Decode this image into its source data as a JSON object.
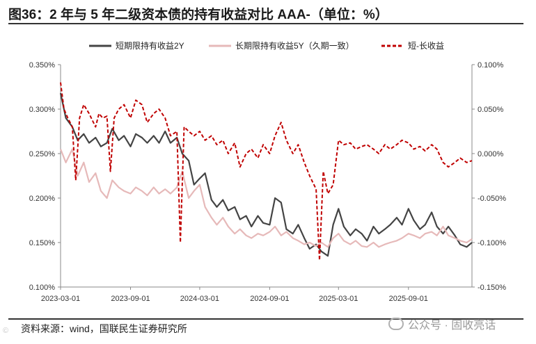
{
  "title": "图36：2 年与 5 年二级资本债的持有收益对比 AAA-（单位：%）",
  "source": "资料来源：wind，国联民生证券研究所",
  "watermark": "公众号 · 固收亮话",
  "corner_mark": "©",
  "colors": {
    "short": "#444444",
    "long": "#e6b9b9",
    "spread": "#c00000"
  },
  "chart_data": {
    "type": "line",
    "legend": [
      "短期限持有收益2Y",
      "长期限持有收益5Y（久期一致）",
      "短-长收益"
    ],
    "x_start": "2023-03-01",
    "x_end": "2026-02-15",
    "x_tick_labels": [
      "2023-03-01",
      "2023-09-01",
      "2024-03-01",
      "2024-09-01",
      "2025-03-01",
      "2025-09-01"
    ],
    "left_axis": {
      "min": 0.1,
      "max": 0.35,
      "tick_labels": [
        "0.100%",
        "0.150%",
        "0.200%",
        "0.250%",
        "0.300%",
        "0.350%"
      ]
    },
    "right_axis": {
      "min": -0.15,
      "max": 0.1,
      "tick_labels": [
        "-0.150%",
        "-0.100%",
        "-0.050%",
        "0.000%",
        "0.050%",
        "0.100%"
      ]
    },
    "series": [
      {
        "name": "短期限持有收益2Y",
        "axis": "left",
        "points": [
          [
            "2023-03-01",
            0.318
          ],
          [
            "2023-03-15",
            0.29
          ],
          [
            "2023-04-01",
            0.28
          ],
          [
            "2023-04-15",
            0.265
          ],
          [
            "2023-05-01",
            0.272
          ],
          [
            "2023-05-15",
            0.262
          ],
          [
            "2023-06-01",
            0.268
          ],
          [
            "2023-06-15",
            0.258
          ],
          [
            "2023-07-01",
            0.262
          ],
          [
            "2023-07-15",
            0.278
          ],
          [
            "2023-08-01",
            0.265
          ],
          [
            "2023-08-15",
            0.27
          ],
          [
            "2023-09-01",
            0.258
          ],
          [
            "2023-09-15",
            0.272
          ],
          [
            "2023-10-01",
            0.268
          ],
          [
            "2023-10-15",
            0.262
          ],
          [
            "2023-11-01",
            0.27
          ],
          [
            "2023-11-15",
            0.262
          ],
          [
            "2023-12-01",
            0.275
          ],
          [
            "2023-12-15",
            0.262
          ],
          [
            "2024-01-01",
            0.268
          ],
          [
            "2024-01-15",
            0.25
          ],
          [
            "2024-02-01",
            0.242
          ],
          [
            "2024-02-15",
            0.215
          ],
          [
            "2024-03-01",
            0.222
          ],
          [
            "2024-03-15",
            0.228
          ],
          [
            "2024-04-01",
            0.198
          ],
          [
            "2024-04-15",
            0.19
          ],
          [
            "2024-05-01",
            0.198
          ],
          [
            "2024-05-15",
            0.186
          ],
          [
            "2024-06-01",
            0.19
          ],
          [
            "2024-06-15",
            0.176
          ],
          [
            "2024-07-01",
            0.18
          ],
          [
            "2024-07-15",
            0.168
          ],
          [
            "2024-08-01",
            0.18
          ],
          [
            "2024-08-15",
            0.172
          ],
          [
            "2024-09-01",
            0.17
          ],
          [
            "2024-09-15",
            0.2
          ],
          [
            "2024-10-01",
            0.195
          ],
          [
            "2024-10-15",
            0.165
          ],
          [
            "2024-11-01",
            0.16
          ],
          [
            "2024-11-15",
            0.17
          ],
          [
            "2024-12-01",
            0.155
          ],
          [
            "2024-12-15",
            0.143
          ],
          [
            "2025-01-01",
            0.148
          ],
          [
            "2025-01-15",
            0.14
          ],
          [
            "2025-02-01",
            0.135
          ],
          [
            "2025-02-15",
            0.17
          ],
          [
            "2025-03-01",
            0.188
          ],
          [
            "2025-03-15",
            0.168
          ],
          [
            "2025-04-01",
            0.158
          ],
          [
            "2025-04-15",
            0.165
          ],
          [
            "2025-05-01",
            0.16
          ],
          [
            "2025-05-15",
            0.152
          ],
          [
            "2025-06-01",
            0.168
          ],
          [
            "2025-06-15",
            0.16
          ],
          [
            "2025-07-01",
            0.165
          ],
          [
            "2025-07-15",
            0.17
          ],
          [
            "2025-08-01",
            0.178
          ],
          [
            "2025-08-15",
            0.17
          ],
          [
            "2025-09-01",
            0.188
          ],
          [
            "2025-09-15",
            0.175
          ],
          [
            "2025-10-01",
            0.165
          ],
          [
            "2025-10-15",
            0.17
          ],
          [
            "2025-11-01",
            0.184
          ],
          [
            "2025-11-15",
            0.168
          ],
          [
            "2025-12-01",
            0.16
          ],
          [
            "2025-12-15",
            0.168
          ],
          [
            "2026-01-01",
            0.158
          ],
          [
            "2026-01-15",
            0.148
          ],
          [
            "2026-02-01",
            0.145
          ],
          [
            "2026-02-15",
            0.15
          ]
        ]
      },
      {
        "name": "长期限持有收益5Y（久期一致）",
        "axis": "left",
        "points": [
          [
            "2023-03-01",
            0.255
          ],
          [
            "2023-03-15",
            0.24
          ],
          [
            "2023-04-01",
            0.255
          ],
          [
            "2023-04-15",
            0.225
          ],
          [
            "2023-05-01",
            0.24
          ],
          [
            "2023-05-15",
            0.218
          ],
          [
            "2023-06-01",
            0.228
          ],
          [
            "2023-06-15",
            0.208
          ],
          [
            "2023-07-01",
            0.2
          ],
          [
            "2023-07-15",
            0.22
          ],
          [
            "2023-08-01",
            0.212
          ],
          [
            "2023-08-15",
            0.208
          ],
          [
            "2023-09-01",
            0.205
          ],
          [
            "2023-09-15",
            0.212
          ],
          [
            "2023-10-01",
            0.208
          ],
          [
            "2023-10-15",
            0.203
          ],
          [
            "2023-11-01",
            0.212
          ],
          [
            "2023-11-15",
            0.205
          ],
          [
            "2023-12-01",
            0.21
          ],
          [
            "2023-12-15",
            0.205
          ],
          [
            "2024-01-01",
            0.212
          ],
          [
            "2024-01-15",
            0.23
          ],
          [
            "2024-02-01",
            0.2
          ],
          [
            "2024-02-15",
            0.208
          ],
          [
            "2024-03-01",
            0.215
          ],
          [
            "2024-03-15",
            0.19
          ],
          [
            "2024-04-01",
            0.178
          ],
          [
            "2024-04-15",
            0.17
          ],
          [
            "2024-05-01",
            0.178
          ],
          [
            "2024-05-15",
            0.168
          ],
          [
            "2024-06-01",
            0.16
          ],
          [
            "2024-06-15",
            0.165
          ],
          [
            "2024-07-01",
            0.158
          ],
          [
            "2024-07-15",
            0.155
          ],
          [
            "2024-08-01",
            0.16
          ],
          [
            "2024-08-15",
            0.158
          ],
          [
            "2024-09-01",
            0.162
          ],
          [
            "2024-09-15",
            0.168
          ],
          [
            "2024-10-01",
            0.158
          ],
          [
            "2024-10-15",
            0.162
          ],
          [
            "2024-11-01",
            0.155
          ],
          [
            "2024-11-15",
            0.152
          ],
          [
            "2024-12-01",
            0.148
          ],
          [
            "2024-12-15",
            0.15
          ],
          [
            "2025-01-01",
            0.146
          ],
          [
            "2025-01-15",
            0.15
          ],
          [
            "2025-02-01",
            0.145
          ],
          [
            "2025-02-15",
            0.155
          ],
          [
            "2025-03-01",
            0.16
          ],
          [
            "2025-03-15",
            0.152
          ],
          [
            "2025-04-01",
            0.148
          ],
          [
            "2025-04-15",
            0.152
          ],
          [
            "2025-05-01",
            0.146
          ],
          [
            "2025-05-15",
            0.145
          ],
          [
            "2025-06-01",
            0.15
          ],
          [
            "2025-06-15",
            0.145
          ],
          [
            "2025-07-01",
            0.148
          ],
          [
            "2025-07-15",
            0.15
          ],
          [
            "2025-08-01",
            0.152
          ],
          [
            "2025-08-15",
            0.155
          ],
          [
            "2025-09-01",
            0.16
          ],
          [
            "2025-09-15",
            0.158
          ],
          [
            "2025-10-01",
            0.155
          ],
          [
            "2025-10-15",
            0.16
          ],
          [
            "2025-11-01",
            0.162
          ],
          [
            "2025-11-15",
            0.158
          ],
          [
            "2025-12-01",
            0.168
          ],
          [
            "2025-12-15",
            0.158
          ],
          [
            "2026-01-01",
            0.155
          ],
          [
            "2026-01-15",
            0.152
          ],
          [
            "2026-02-01",
            0.15
          ],
          [
            "2026-02-15",
            0.154
          ]
        ]
      },
      {
        "name": "短-长收益",
        "axis": "right",
        "points": [
          [
            "2023-03-01",
            0.08
          ],
          [
            "2023-03-10",
            0.05
          ],
          [
            "2023-03-20",
            0.04
          ],
          [
            "2023-04-01",
            0.03
          ],
          [
            "2023-04-10",
            -0.03
          ],
          [
            "2023-04-20",
            0.04
          ],
          [
            "2023-05-01",
            0.055
          ],
          [
            "2023-05-15",
            0.045
          ],
          [
            "2023-06-01",
            0.03
          ],
          [
            "2023-06-10",
            0.045
          ],
          [
            "2023-06-20",
            0.04
          ],
          [
            "2023-07-01",
            0.042
          ],
          [
            "2023-07-10",
            -0.02
          ],
          [
            "2023-07-20",
            0.04
          ],
          [
            "2023-08-01",
            0.05
          ],
          [
            "2023-08-15",
            0.055
          ],
          [
            "2023-09-01",
            0.04
          ],
          [
            "2023-09-15",
            0.06
          ],
          [
            "2023-10-01",
            0.055
          ],
          [
            "2023-10-15",
            0.035
          ],
          [
            "2023-11-01",
            0.045
          ],
          [
            "2023-11-15",
            0.05
          ],
          [
            "2023-12-01",
            0.04
          ],
          [
            "2023-12-15",
            0.02
          ],
          [
            "2024-01-01",
            0.025
          ],
          [
            "2024-01-10",
            -0.1
          ],
          [
            "2024-01-20",
            0.03
          ],
          [
            "2024-02-01",
            0.025
          ],
          [
            "2024-02-15",
            0.02
          ],
          [
            "2024-03-01",
            0.025
          ],
          [
            "2024-03-15",
            0.015
          ],
          [
            "2024-04-01",
            0.02
          ],
          [
            "2024-04-15",
            0.01
          ],
          [
            "2024-05-01",
            0.015
          ],
          [
            "2024-05-15",
            0.0
          ],
          [
            "2024-06-01",
            0.012
          ],
          [
            "2024-06-15",
            -0.015
          ],
          [
            "2024-07-01",
            0.0
          ],
          [
            "2024-07-15",
            0.005
          ],
          [
            "2024-08-01",
            -0.005
          ],
          [
            "2024-08-15",
            0.01
          ],
          [
            "2024-09-01",
            0.0
          ],
          [
            "2024-09-15",
            0.02
          ],
          [
            "2024-10-01",
            0.035
          ],
          [
            "2024-10-15",
            0.015
          ],
          [
            "2024-11-01",
            0.0
          ],
          [
            "2024-11-15",
            0.01
          ],
          [
            "2024-12-01",
            -0.01
          ],
          [
            "2024-12-15",
            -0.025
          ],
          [
            "2025-01-01",
            -0.04
          ],
          [
            "2025-01-10",
            -0.12
          ],
          [
            "2025-01-20",
            -0.02
          ],
          [
            "2025-02-01",
            -0.045
          ],
          [
            "2025-02-15",
            -0.035
          ],
          [
            "2025-03-01",
            0.015
          ],
          [
            "2025-03-15",
            0.01
          ],
          [
            "2025-04-01",
            0.012
          ],
          [
            "2025-04-15",
            0.005
          ],
          [
            "2025-05-01",
            0.008
          ],
          [
            "2025-05-15",
            0.01
          ],
          [
            "2025-06-01",
            0.005
          ],
          [
            "2025-06-15",
            0.0
          ],
          [
            "2025-07-01",
            0.01
          ],
          [
            "2025-07-15",
            0.005
          ],
          [
            "2025-08-01",
            0.01
          ],
          [
            "2025-08-15",
            0.015
          ],
          [
            "2025-09-01",
            0.012
          ],
          [
            "2025-09-15",
            0.005
          ],
          [
            "2025-10-01",
            0.008
          ],
          [
            "2025-10-15",
            0.003
          ],
          [
            "2025-11-01",
            0.01
          ],
          [
            "2025-11-15",
            0.005
          ],
          [
            "2025-12-01",
            -0.01
          ],
          [
            "2025-12-15",
            -0.015
          ],
          [
            "2026-01-01",
            -0.01
          ],
          [
            "2026-01-15",
            -0.005
          ],
          [
            "2026-02-01",
            -0.01
          ],
          [
            "2026-02-15",
            -0.008
          ]
        ]
      }
    ]
  }
}
